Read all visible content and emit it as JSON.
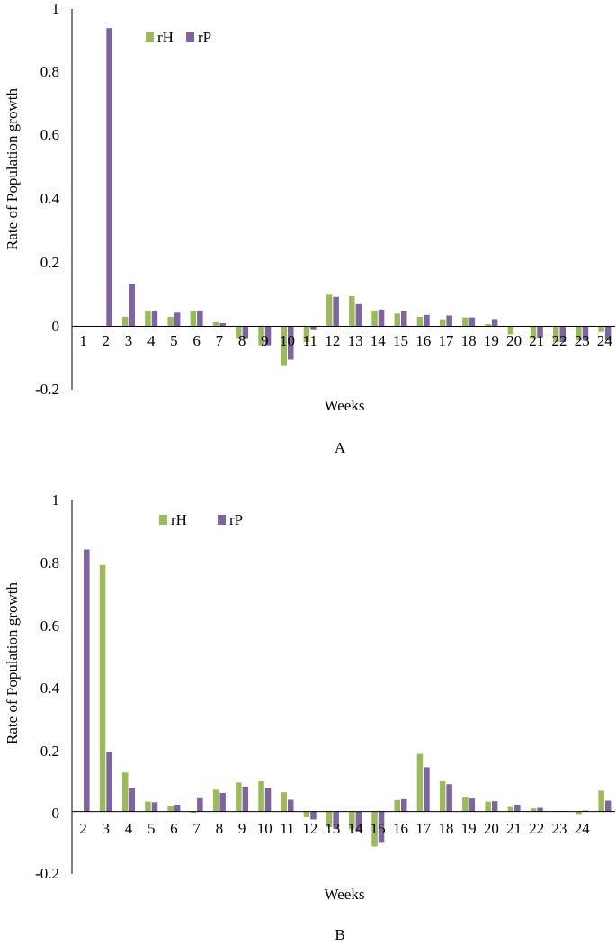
{
  "colors": {
    "rH": "#9bbb59",
    "rP": "#8064a2",
    "axis": "#000000"
  },
  "chart_data": [
    {
      "panel_label": "A",
      "type": "bar",
      "xlabel": "Weeks",
      "ylabel": "Rate of Population growth",
      "ylim": [
        -0.2,
        1
      ],
      "yticks": [
        "-0.2",
        "0",
        "0.2",
        "0.4",
        "0.6",
        "0.8",
        "1"
      ],
      "categories": [
        "1",
        "2",
        "3",
        "4",
        "5",
        "6",
        "7",
        "8",
        "9",
        "10",
        "11",
        "12",
        "13",
        "14",
        "15",
        "16",
        "17",
        "18",
        "19",
        "20",
        "21",
        "22",
        "23",
        "24"
      ],
      "legend_position": "top-left",
      "grid": false,
      "series": [
        {
          "name": "rH",
          "values": [
            0,
            0,
            0.03,
            0.05,
            0.03,
            0.047,
            0.013,
            -0.04,
            -0.06,
            -0.125,
            -0.05,
            0.1,
            0.095,
            0.05,
            0.04,
            0.03,
            0.022,
            0.028,
            0.007,
            -0.025,
            -0.04,
            -0.05,
            -0.045,
            -0.018
          ]
        },
        {
          "name": "rP",
          "values": [
            0,
            0.94,
            0.133,
            0.05,
            0.043,
            0.05,
            0.01,
            -0.04,
            -0.06,
            -0.105,
            -0.012,
            0.093,
            0.07,
            0.053,
            0.047,
            0.036,
            0.034,
            0.028,
            0.023,
            0,
            -0.035,
            -0.05,
            -0.045,
            -0.045
          ]
        }
      ]
    },
    {
      "panel_label": "B",
      "type": "bar",
      "xlabel": "Weeks",
      "ylabel": "Rate of Population growth",
      "ylim": [
        -0.2,
        1
      ],
      "yticks": [
        "-0.2",
        "0",
        "0.2",
        "0.4",
        "0.6",
        "0.8",
        "1"
      ],
      "categories": [
        "2",
        "3",
        "4",
        "5",
        "6",
        "7",
        "8",
        "9",
        "10",
        "11",
        "12",
        "13",
        "14",
        "15",
        "16",
        "17",
        "18",
        "19",
        "20",
        "21",
        "22",
        "23",
        "24",
        ""
      ],
      "legend_position": "top-left",
      "grid": false,
      "series": [
        {
          "name": "rH",
          "values": [
            0,
            0.79,
            0.125,
            0.032,
            0.017,
            -0.004,
            0.07,
            0.093,
            0.097,
            0.062,
            -0.018,
            -0.05,
            -0.057,
            -0.112,
            0.037,
            0.185,
            0.097,
            0.045,
            0.032,
            0.015,
            0.01,
            0.002,
            -0.008,
            0.067
          ]
        },
        {
          "name": "rP",
          "values": [
            0.84,
            0.19,
            0.075,
            0.03,
            0.022,
            0.043,
            0.06,
            0.08,
            0.075,
            0.038,
            -0.025,
            -0.055,
            -0.06,
            -0.1,
            0.04,
            0.142,
            0.088,
            0.042,
            0.033,
            0.022,
            0.012,
            0.002,
            0.003,
            0.035
          ]
        }
      ]
    }
  ]
}
